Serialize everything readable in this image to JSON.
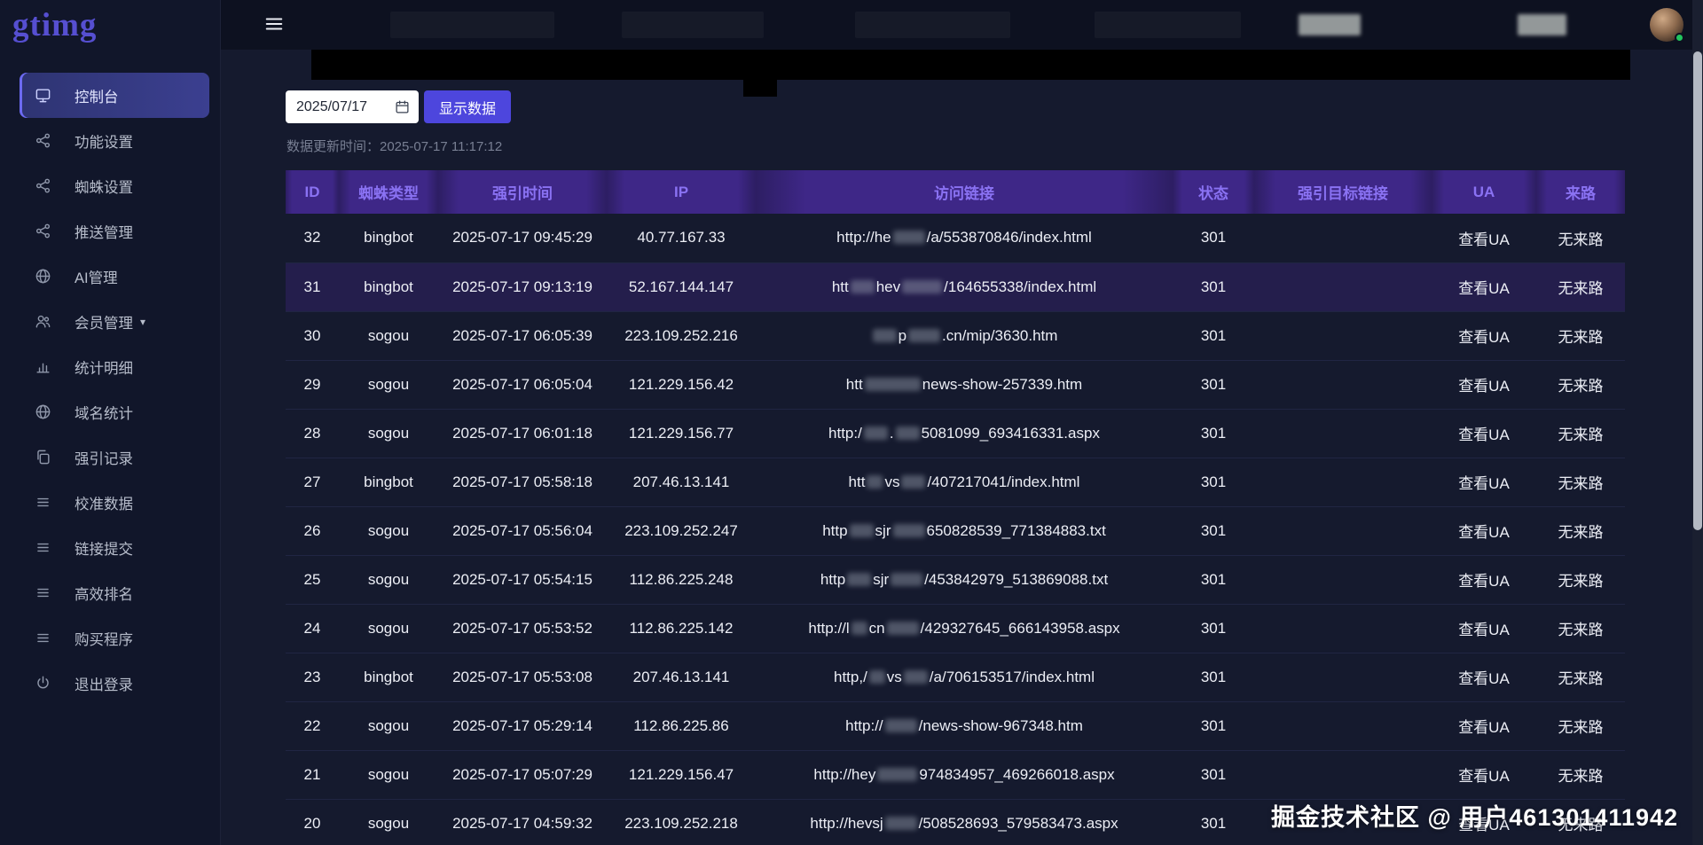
{
  "app": {
    "logo": "gtimg",
    "watermark": "掘金技术社区 @ 用户461301411942"
  },
  "user": {
    "status": "online"
  },
  "sidebar": {
    "items": [
      {
        "key": "console",
        "label": "控制台",
        "icon": "monitor",
        "active": true
      },
      {
        "key": "function-settings",
        "label": "功能设置",
        "icon": "nodes"
      },
      {
        "key": "spider-settings",
        "label": "蜘蛛设置",
        "icon": "nodes"
      },
      {
        "key": "push-management",
        "label": "推送管理",
        "icon": "nodes"
      },
      {
        "key": "ai-management",
        "label": "AI管理",
        "icon": "globe"
      },
      {
        "key": "member-management",
        "label": "会员管理",
        "icon": "users",
        "caret": true
      },
      {
        "key": "statistics-detail",
        "label": "统计明细",
        "icon": "chart"
      },
      {
        "key": "domain-statistics",
        "label": "域名统计",
        "icon": "globe"
      },
      {
        "key": "force-records",
        "label": "强引记录",
        "icon": "copy"
      },
      {
        "key": "calibration-data",
        "label": "校准数据",
        "icon": "list"
      },
      {
        "key": "link-submission",
        "label": "链接提交",
        "icon": "list"
      },
      {
        "key": "efficient-ranking",
        "label": "高效排名",
        "icon": "list"
      },
      {
        "key": "buy-program",
        "label": "购买程序",
        "icon": "list"
      },
      {
        "key": "logout",
        "label": "退出登录",
        "icon": "power"
      }
    ]
  },
  "toolbar": {
    "date_value": "2025/07/17",
    "show_button_label": "显示数据",
    "update_time_text": "数据更新时间：2025-07-17 11:17:12"
  },
  "table": {
    "headers": [
      "ID",
      "蜘蛛类型",
      "强引时间",
      "IP",
      "访问链接",
      "状态",
      "强引目标链接",
      "UA",
      "来路"
    ],
    "rows": [
      {
        "id": "32",
        "spider": "bingbot",
        "time": "2025-07-17 09:45:29",
        "ip": "40.77.167.33",
        "status": "301",
        "target": "",
        "ua": "查看UA",
        "referrer": "无来路",
        "highlight": false,
        "url": [
          [
            "t",
            "http://he"
          ],
          [
            "b",
            4
          ],
          [
            "t",
            "/a/553870846/index.html"
          ]
        ]
      },
      {
        "id": "31",
        "spider": "bingbot",
        "time": "2025-07-17 09:13:19",
        "ip": "52.167.144.147",
        "status": "301",
        "target": "",
        "ua": "查看UA",
        "referrer": "无来路",
        "highlight": true,
        "url": [
          [
            "t",
            "htt"
          ],
          [
            "b",
            3
          ],
          [
            "t",
            "hev"
          ],
          [
            "b",
            5
          ],
          [
            "t",
            "/164655338/index.html"
          ]
        ]
      },
      {
        "id": "30",
        "spider": "sogou",
        "time": "2025-07-17 06:05:39",
        "ip": "223.109.252.216",
        "status": "301",
        "target": "",
        "ua": "查看UA",
        "referrer": "无来路",
        "highlight": false,
        "url": [
          [
            "b",
            3
          ],
          [
            "t",
            "p"
          ],
          [
            "b",
            4
          ],
          [
            "t",
            ".cn/mip/3630.htm"
          ]
        ]
      },
      {
        "id": "29",
        "spider": "sogou",
        "time": "2025-07-17 06:05:04",
        "ip": "121.229.156.42",
        "status": "301",
        "target": "",
        "ua": "查看UA",
        "referrer": "无来路",
        "highlight": false,
        "url": [
          [
            "t",
            "htt"
          ],
          [
            "b",
            7
          ],
          [
            "t",
            "news-show-257339.htm"
          ]
        ]
      },
      {
        "id": "28",
        "spider": "sogou",
        "time": "2025-07-17 06:01:18",
        "ip": "121.229.156.77",
        "status": "301",
        "target": "",
        "ua": "查看UA",
        "referrer": "无来路",
        "highlight": false,
        "url": [
          [
            "t",
            "http:/"
          ],
          [
            "b",
            3
          ],
          [
            "t",
            "."
          ],
          [
            "b",
            3
          ],
          [
            "t",
            "5081099_693416331.aspx"
          ]
        ]
      },
      {
        "id": "27",
        "spider": "bingbot",
        "time": "2025-07-17 05:58:18",
        "ip": "207.46.13.141",
        "status": "301",
        "target": "",
        "ua": "查看UA",
        "referrer": "无来路",
        "highlight": false,
        "url": [
          [
            "t",
            "htt"
          ],
          [
            "b",
            2
          ],
          [
            "t",
            "vs"
          ],
          [
            "b",
            3
          ],
          [
            "t",
            "/407217041/index.html"
          ]
        ]
      },
      {
        "id": "26",
        "spider": "sogou",
        "time": "2025-07-17 05:56:04",
        "ip": "223.109.252.247",
        "status": "301",
        "target": "",
        "ua": "查看UA",
        "referrer": "无来路",
        "highlight": false,
        "url": [
          [
            "t",
            "http"
          ],
          [
            "b",
            3
          ],
          [
            "t",
            "sjr"
          ],
          [
            "b",
            4
          ],
          [
            "t",
            "650828539_771384883.txt"
          ]
        ]
      },
      {
        "id": "25",
        "spider": "sogou",
        "time": "2025-07-17 05:54:15",
        "ip": "112.86.225.248",
        "status": "301",
        "target": "",
        "ua": "查看UA",
        "referrer": "无来路",
        "highlight": false,
        "url": [
          [
            "t",
            "http"
          ],
          [
            "b",
            3
          ],
          [
            "t",
            "sjr"
          ],
          [
            "b",
            4
          ],
          [
            "t",
            "/453842979_513869088.txt"
          ]
        ]
      },
      {
        "id": "24",
        "spider": "sogou",
        "time": "2025-07-17 05:53:52",
        "ip": "112.86.225.142",
        "status": "301",
        "target": "",
        "ua": "查看UA",
        "referrer": "无来路",
        "highlight": false,
        "url": [
          [
            "t",
            "http://l"
          ],
          [
            "b",
            2
          ],
          [
            "t",
            "cn"
          ],
          [
            "b",
            4
          ],
          [
            "t",
            "/429327645_666143958.aspx"
          ]
        ]
      },
      {
        "id": "23",
        "spider": "bingbot",
        "time": "2025-07-17 05:53:08",
        "ip": "207.46.13.141",
        "status": "301",
        "target": "",
        "ua": "查看UA",
        "referrer": "无来路",
        "highlight": false,
        "url": [
          [
            "t",
            "http,/"
          ],
          [
            "b",
            2
          ],
          [
            "t",
            "vs"
          ],
          [
            "b",
            3
          ],
          [
            "t",
            "/a/706153517/index.html"
          ]
        ]
      },
      {
        "id": "22",
        "spider": "sogou",
        "time": "2025-07-17 05:29:14",
        "ip": "112.86.225.86",
        "status": "301",
        "target": "",
        "ua": "查看UA",
        "referrer": "无来路",
        "highlight": false,
        "url": [
          [
            "t",
            "http://"
          ],
          [
            "b",
            4
          ],
          [
            "t",
            "/news-show-967348.htm"
          ]
        ]
      },
      {
        "id": "21",
        "spider": "sogou",
        "time": "2025-07-17 05:07:29",
        "ip": "121.229.156.47",
        "status": "301",
        "target": "",
        "ua": "查看UA",
        "referrer": "无来路",
        "highlight": false,
        "url": [
          [
            "t",
            "http://hey"
          ],
          [
            "b",
            5
          ],
          [
            "t",
            "974834957_469266018.aspx"
          ]
        ]
      },
      {
        "id": "20",
        "spider": "sogou",
        "time": "2025-07-17 04:59:32",
        "ip": "223.109.252.218",
        "status": "301",
        "target": "",
        "ua": "查看UA",
        "referrer": "无来路",
        "highlight": false,
        "url": [
          [
            "t",
            "http://hevsj"
          ],
          [
            "b",
            4
          ],
          [
            "t",
            "/508528693_579583473.aspx"
          ]
        ]
      }
    ]
  },
  "colors": {
    "accent": "#4d46dd",
    "table_header_bg": "#3e2787",
    "table_header_text": "#8a72f3",
    "status_online": "#22c55e",
    "highlight_row": "#241e4c"
  }
}
